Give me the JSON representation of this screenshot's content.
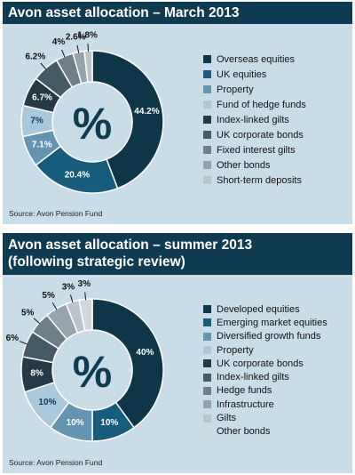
{
  "colors": [
    "#0d3649",
    "#175c7c",
    "#6395b3",
    "#a9c8dc",
    "#243a46",
    "#445b67",
    "#6e7f89",
    "#98a4ac",
    "#b9c4cb",
    "#d2d8dd"
  ],
  "charts": {
    "march": {
      "title": "Avon asset allocation – March 2013",
      "source": "Source: Avon Pension Fund",
      "center_symbol": "%"
    },
    "summer": {
      "title_line1": "Avon asset allocation – summer 2013",
      "title_line2": "(following strategic review)",
      "source": "Source: Avon Pension Fund",
      "center_symbol": "%"
    }
  },
  "chart_data": [
    {
      "type": "pie",
      "title": "Avon asset allocation – March 2013",
      "categories": [
        "Overseas equities",
        "UK equities",
        "Property",
        "Fund of hedge funds",
        "Index-linked gilts",
        "UK corporate bonds",
        "Fixed interest gilts",
        "Other bonds",
        "Short-term deposits"
      ],
      "values": [
        44.2,
        20.4,
        7.1,
        7,
        6.7,
        6.2,
        4,
        2.6,
        1.8
      ],
      "labels": [
        "44.2%",
        "20.4%",
        "7.1%",
        "7%",
        "6.7%",
        "6.2%",
        "4%",
        "2.6%",
        "1.8%"
      ],
      "legend": "right",
      "donut": true
    },
    {
      "type": "pie",
      "title": "Avon asset allocation – summer 2013 (following strategic review)",
      "categories": [
        "Developed equities",
        "Emerging market equities",
        "Diversified growth funds",
        "Property",
        "UK corporate bonds",
        "Index-linked gilts",
        "Hedge funds",
        "Infrastructure",
        "Gilts",
        "Other bonds"
      ],
      "values": [
        40,
        10,
        10,
        10,
        8,
        6,
        5,
        5,
        3,
        3
      ],
      "labels": [
        "40%",
        "10%",
        "10%",
        "10%",
        "8%",
        "6%",
        "5%",
        "5%",
        "3%",
        "3%"
      ],
      "legend": "right",
      "donut": true
    }
  ]
}
